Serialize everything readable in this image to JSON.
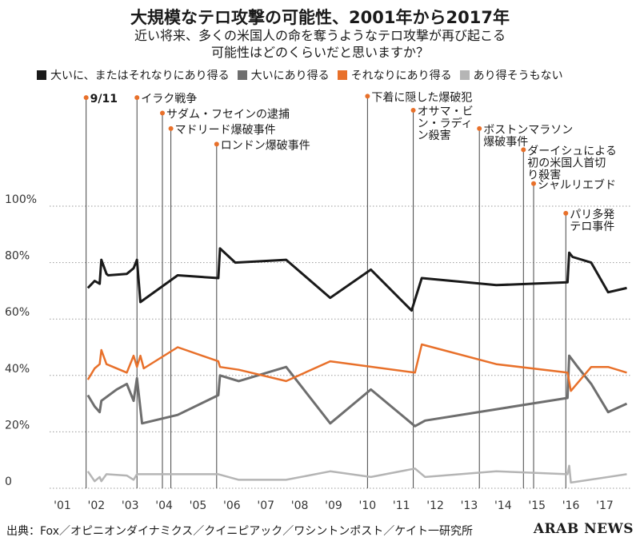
{
  "title": "大規模なテロ攻撃の可能性、2001年から2017年",
  "subtitle_lines": [
    "近い将来、多くの米国人の命を奪うようなテロ攻撃が再び起こる",
    "可能性はどのくらいだと思いますか？"
  ],
  "source": "出典：Fox／オピニオンダイナミクス／クイニピアック／ワシントンポスト／ケイト一研究所",
  "brand": "ARAB NEWS",
  "colors": {
    "total": "#1a1a1a",
    "great_deal": "#6e6e6e",
    "somewhat": "#e8702a",
    "not_likely": "#b5b5b5",
    "event_dot": "#e8702a",
    "event_line": "#444444",
    "grid": "#9a9a9a"
  },
  "chart_data": {
    "type": "line",
    "xlim": [
      2000.6,
      2017.8
    ],
    "ylim": [
      0,
      100
    ],
    "y_ticks": [
      0,
      20,
      40,
      60,
      80,
      100
    ],
    "y_tick_labels": [
      "0",
      "20%",
      "40%",
      "60%",
      "80%",
      "100%"
    ],
    "x_ticks": [
      2001,
      2002,
      2003,
      2004,
      2005,
      2006,
      2007,
      2008,
      2009,
      2010,
      2011,
      2012,
      2013,
      2014,
      2015,
      2016,
      2017
    ],
    "x_tick_labels": [
      "'01",
      "'02",
      "'03",
      "'04",
      "'05",
      "'06",
      "'07",
      "'08",
      "'09",
      "'10",
      "'11",
      "'12",
      "'13",
      "'14",
      "'15",
      "'16",
      "'17"
    ],
    "grid": "horizontal dotted",
    "legend_position": "top",
    "series": [
      {
        "key": "total",
        "name": "大いに、またはそれなりにあり得る",
        "points": [
          [
            2001.75,
            71
          ],
          [
            2001.95,
            73.5
          ],
          [
            2002.1,
            72.5
          ],
          [
            2002.15,
            81
          ],
          [
            2002.3,
            76
          ],
          [
            2002.35,
            75.5
          ],
          [
            2002.9,
            76
          ],
          [
            2003.0,
            77
          ],
          [
            2003.1,
            78
          ],
          [
            2003.2,
            81
          ],
          [
            2003.3,
            66
          ],
          [
            2004.4,
            75.5
          ],
          [
            2005.6,
            74.5
          ],
          [
            2005.65,
            85
          ],
          [
            2006.1,
            80
          ],
          [
            2007.6,
            81
          ],
          [
            2008.9,
            67.5
          ],
          [
            2010.1,
            77.5
          ],
          [
            2011.3,
            63
          ],
          [
            2011.6,
            74.5
          ],
          [
            2013.8,
            72
          ],
          [
            2015.9,
            73
          ],
          [
            2015.95,
            83.5
          ],
          [
            2016.05,
            82
          ],
          [
            2016.6,
            80
          ],
          [
            2017.1,
            69.5
          ],
          [
            2017.65,
            71
          ]
        ]
      },
      {
        "key": "great_deal",
        "name": "大いにあり得る",
        "points": [
          [
            2001.75,
            33
          ],
          [
            2001.95,
            29
          ],
          [
            2002.1,
            27
          ],
          [
            2002.15,
            31
          ],
          [
            2002.6,
            35
          ],
          [
            2002.9,
            37
          ],
          [
            2003.1,
            31
          ],
          [
            2003.2,
            39
          ],
          [
            2003.35,
            23
          ],
          [
            2004.4,
            26
          ],
          [
            2005.6,
            33
          ],
          [
            2005.65,
            40
          ],
          [
            2006.2,
            38
          ],
          [
            2007.6,
            43
          ],
          [
            2008.9,
            23
          ],
          [
            2010.1,
            35
          ],
          [
            2011.4,
            22
          ],
          [
            2011.7,
            24
          ],
          [
            2015.9,
            32
          ],
          [
            2015.95,
            47
          ],
          [
            2016.2,
            43
          ],
          [
            2016.6,
            37
          ],
          [
            2017.1,
            27
          ],
          [
            2017.65,
            30
          ]
        ]
      },
      {
        "key": "somewhat",
        "name": "それなりにあり得る",
        "points": [
          [
            2001.75,
            38.5
          ],
          [
            2001.95,
            42.5
          ],
          [
            2002.1,
            44
          ],
          [
            2002.15,
            49
          ],
          [
            2002.3,
            44
          ],
          [
            2002.9,
            41
          ],
          [
            2003.1,
            47
          ],
          [
            2003.2,
            43
          ],
          [
            2003.3,
            47
          ],
          [
            2003.4,
            42.5
          ],
          [
            2004.4,
            50
          ],
          [
            2005.6,
            45
          ],
          [
            2005.65,
            43
          ],
          [
            2006.2,
            42
          ],
          [
            2007.6,
            38
          ],
          [
            2008.9,
            45
          ],
          [
            2011.4,
            41
          ],
          [
            2011.6,
            51
          ],
          [
            2013.8,
            44
          ],
          [
            2015.9,
            41
          ],
          [
            2016.0,
            34.5
          ],
          [
            2016.6,
            43
          ],
          [
            2017.1,
            43
          ],
          [
            2017.65,
            41
          ]
        ]
      },
      {
        "key": "not_likely",
        "name": "あり得そうもない",
        "points": [
          [
            2001.75,
            6
          ],
          [
            2001.95,
            2.5
          ],
          [
            2002.1,
            4
          ],
          [
            2002.15,
            2.5
          ],
          [
            2002.3,
            5
          ],
          [
            2002.9,
            4.5
          ],
          [
            2003.1,
            3
          ],
          [
            2003.2,
            5
          ],
          [
            2003.35,
            5
          ],
          [
            2005.6,
            5
          ],
          [
            2006.2,
            3
          ],
          [
            2007.6,
            3
          ],
          [
            2008.9,
            6
          ],
          [
            2010.1,
            4
          ],
          [
            2011.4,
            7
          ],
          [
            2011.7,
            4
          ],
          [
            2013.8,
            6
          ],
          [
            2015.9,
            5
          ],
          [
            2015.95,
            8
          ],
          [
            2016.0,
            2
          ],
          [
            2017.65,
            5
          ]
        ]
      }
    ],
    "events": [
      {
        "label": "9/11",
        "x": 2001.7,
        "y": 138.5,
        "bold": true
      },
      {
        "label": "イラク戦争",
        "x": 2003.2,
        "y": 138.5
      },
      {
        "label": "サダム・フセインの逮捕",
        "x": 2003.95,
        "y": 133
      },
      {
        "label": "マドリード爆破事件",
        "x": 2004.2,
        "y": 127.5
      },
      {
        "label": "ロンドン爆破事件",
        "x": 2005.55,
        "y": 122
      },
      {
        "label": "下着に隠した爆破犯",
        "x": 2010.0,
        "y": 139
      },
      {
        "label": "オサマ・ビ|ン・ラディ|ン殺害",
        "x": 2011.35,
        "y": 134
      },
      {
        "label": "ボストンマラソン|爆破事件",
        "x": 2013.3,
        "y": 127.5
      },
      {
        "label": "ダーイシュによる|初の米国人首切|り殺害",
        "x": 2014.6,
        "y": 120
      },
      {
        "label": "シャルリエブド",
        "x": 2014.9,
        "y": 108
      },
      {
        "label": "パリ多発|テロ事件",
        "x": 2015.85,
        "y": 97.5
      }
    ]
  }
}
